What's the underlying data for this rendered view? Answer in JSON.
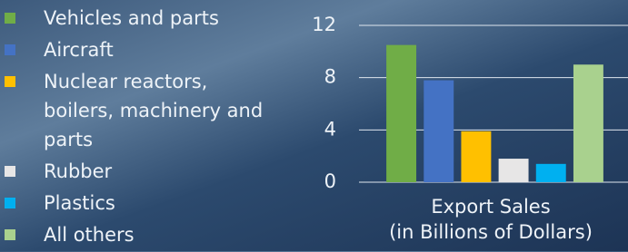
{
  "chart_data": {
    "type": "bar",
    "categories": [
      "Vehicles and parts",
      "Aircraft",
      "Nuclear reactors, boilers, machinery and parts",
      "Rubber",
      "Plastics",
      "All others"
    ],
    "values": [
      10.5,
      7.8,
      3.9,
      1.8,
      1.4,
      9.0
    ],
    "colors": [
      "#70ad47",
      "#4472c4",
      "#ffc000",
      "#e7e6e6",
      "#00b0f0",
      "#a9d18e"
    ],
    "xlabel": [
      "Export Sales",
      "(in Billions of Dollars)"
    ],
    "ylim": [
      0,
      12
    ],
    "yticks": [
      0,
      4,
      8,
      12
    ],
    "grid": true
  }
}
